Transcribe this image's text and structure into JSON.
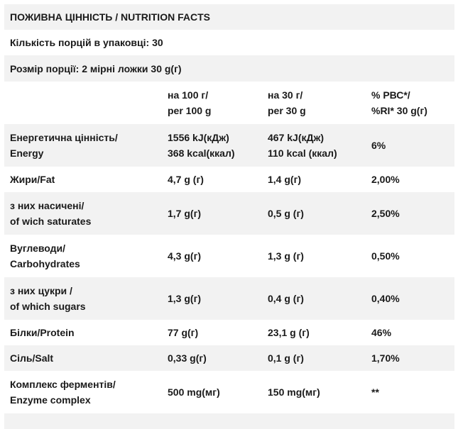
{
  "title": "ПОЖИВНА ЦІННІСТЬ / NUTRITION FACTS",
  "servings_per_pack": "Кількість порцій в упаковці: 30",
  "serving_size": "Розмір порції: 2 мірні ложки 30 g(г)",
  "columns": {
    "per100": [
      "на 100 г/",
      "per 100 g"
    ],
    "per30": [
      "на 30 г/",
      "per 30 g"
    ],
    "ri": [
      "% РВС*/",
      "%RI* 30 g(г)"
    ]
  },
  "rows": [
    {
      "name": [
        "Енергетична цінність/",
        "Energy"
      ],
      "per100": [
        "1556 kJ(кДж)",
        "368 kcal(ккал)"
      ],
      "per30": [
        "467 kJ(кДж)",
        "110 kcal (ккал)"
      ],
      "ri": "6%"
    },
    {
      "name": [
        "Жири/Fat"
      ],
      "per100": [
        "4,7 g (г)"
      ],
      "per30": [
        "1,4 g(г)"
      ],
      "ri": "2,00%"
    },
    {
      "name": [
        "з них насичені/",
        "of wich saturates"
      ],
      "per100": [
        "1,7 g(г)"
      ],
      "per30": [
        "0,5 g (г)"
      ],
      "ri": "2,50%"
    },
    {
      "name": [
        "Вуглеводи/",
        "Carbohydrates"
      ],
      "per100": [
        "4,3 g(г)"
      ],
      "per30": [
        "1,3 g (г)"
      ],
      "ri": "0,50%"
    },
    {
      "name": [
        "з них цукри /",
        "of which sugars"
      ],
      "per100": [
        "1,3 g(г)"
      ],
      "per30": [
        "0,4 g (г)"
      ],
      "ri": "0,40%"
    },
    {
      "name": [
        "Білки/Protein"
      ],
      "per100": [
        "77 g(г)"
      ],
      "per30": [
        "23,1 g (г)"
      ],
      "ri": "46%"
    },
    {
      "name": [
        "Сіль/Salt"
      ],
      "per100": [
        "0,33 g(г)"
      ],
      "per30": [
        "0,1 g (г)"
      ],
      "ri": "1,70%"
    },
    {
      "name": [
        "Комплекс ферментів/",
        "Enzyme complex"
      ],
      "per100": [
        "500 mg(мг)"
      ],
      "per30": [
        "150 mg(мг)"
      ],
      "ri": "**"
    }
  ]
}
